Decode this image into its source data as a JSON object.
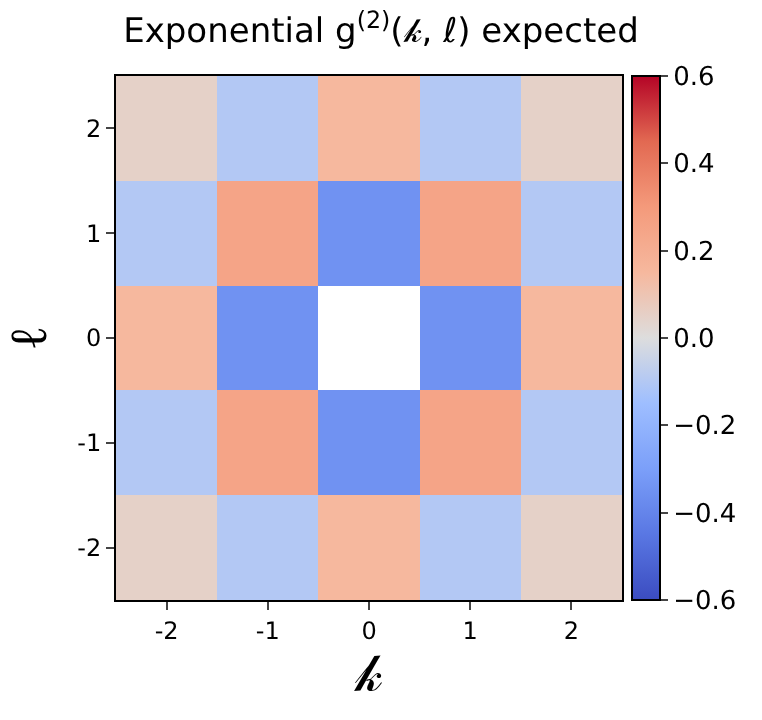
{
  "chart_data": {
    "type": "heatmap",
    "title": "Exponential g$^{(2)}$(𝓀, ℓ) expected",
    "xlabel": "𝓀",
    "ylabel": "ℓ",
    "categories": [
      "-2",
      "-1",
      "0",
      "1",
      "2"
    ],
    "y_categories": [
      "2",
      "1",
      "0",
      "-1",
      "-2"
    ],
    "cells": [
      [
        0.05,
        -0.1,
        0.15,
        -0.1,
        0.05
      ],
      [
        -0.1,
        0.25,
        -0.35,
        0.25,
        -0.1
      ],
      [
        0.15,
        -0.35,
        null,
        -0.35,
        0.15
      ],
      [
        -0.1,
        0.25,
        -0.35,
        0.25,
        -0.1
      ],
      [
        0.05,
        -0.1,
        0.15,
        -0.1,
        0.05
      ]
    ],
    "clim": [
      -0.6,
      0.6
    ],
    "cticks": [
      {
        "value": -0.6,
        "label": "−0.6"
      },
      {
        "value": -0.4,
        "label": "−0.4"
      },
      {
        "value": -0.2,
        "label": "−0.2"
      },
      {
        "value": 0,
        "label": "0.0"
      },
      0.2,
      0.4,
      0.6
    ]
  }
}
